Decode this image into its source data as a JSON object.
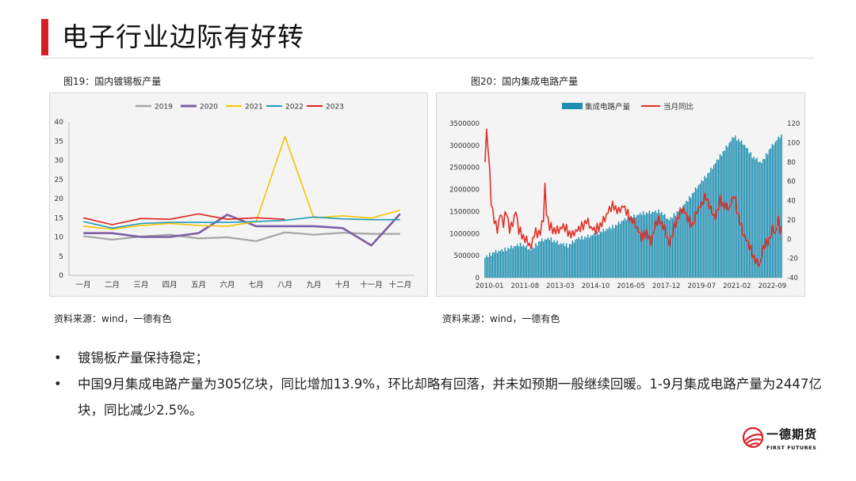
{
  "page": {
    "title": "电子行业边际有好转"
  },
  "fig19": {
    "caption": "图19：国内镀锡板产量",
    "source": "资料来源：wind，一德有色"
  },
  "fig20": {
    "caption": "图20：国内集成电路产量",
    "source": "资料来源：wind，一德有色"
  },
  "bullets": [
    "镀锡板产量保持稳定；",
    "中国9月集成电路产量为305亿块，同比增加13.9%，环比却略有回落，并未如预期一般继续回暖。1-9月集成电路产量为2447亿块，同比减少2.5%。"
  ],
  "bullet_marker": "•",
  "logo": {
    "name_cn": "一德期货",
    "name_en": "FIRST FUTURES"
  },
  "colors": {
    "accent": "#d81e24",
    "bar": "#1a8db0",
    "line": "#e03027"
  },
  "chart_data": [
    {
      "type": "line",
      "categories": [
        "一月",
        "二月",
        "三月",
        "四月",
        "五月",
        "六月",
        "七月",
        "八月",
        "九月",
        "十月",
        "十一月",
        "十二月"
      ],
      "ylim": [
        0,
        40
      ],
      "yticks": [
        0,
        5,
        10,
        15,
        20,
        25,
        30,
        35,
        40
      ],
      "grid": false,
      "legend_position": "top",
      "series": [
        {
          "name": "2019",
          "color": "#a5a5a5",
          "width": 2.2,
          "values": [
            10.2,
            9.3,
            10.1,
            10.6,
            9.6,
            9.9,
            8.9,
            11.2,
            10.6,
            11.1,
            10.8,
            10.8
          ]
        },
        {
          "name": "2020",
          "color": "#7b5ea7",
          "width": 2.6,
          "values": [
            11.0,
            11.0,
            10.0,
            10.0,
            11.0,
            15.8,
            12.8,
            12.8,
            12.8,
            12.3,
            7.8,
            16.0
          ]
        },
        {
          "name": "2021",
          "color": "#f5c400",
          "width": 1.6,
          "values": [
            12.8,
            12.0,
            13.0,
            13.5,
            13.0,
            12.8,
            14.0,
            36.2,
            15.0,
            15.5,
            14.9,
            17.0
          ]
        },
        {
          "name": "2022",
          "color": "#1f9bb8",
          "width": 1.6,
          "values": [
            14.0,
            12.3,
            13.5,
            13.8,
            13.8,
            13.8,
            14.0,
            14.3,
            15.2,
            14.7,
            14.5,
            14.5
          ]
        },
        {
          "name": "2023",
          "color": "#e0201b",
          "width": 1.6,
          "values": [
            15.0,
            13.2,
            14.8,
            14.6,
            16.0,
            14.6,
            15.0,
            14.6,
            null,
            null,
            null,
            null
          ]
        }
      ]
    },
    {
      "type": "bar+line",
      "x_tick_labels": [
        "2010-01",
        "2011-08",
        "2013-03",
        "2014-10",
        "2016-05",
        "2017-12",
        "2019-07",
        "2021-02",
        "2022-09"
      ],
      "ylim_left": [
        0,
        3500000
      ],
      "yticks_left": [
        0,
        500000,
        1000000,
        1500000,
        2000000,
        2500000,
        3000000,
        3500000
      ],
      "ylim_right": [
        -40,
        120
      ],
      "yticks_right": [
        -40,
        -20,
        0,
        20,
        40,
        60,
        80,
        100,
        120
      ],
      "legend_position": "top",
      "series": [
        {
          "name": "集成电路产量",
          "axis": "left",
          "type": "bar",
          "anchors": [
            [
              0,
              450000
            ],
            [
              6,
              580000
            ],
            [
              12,
              620000
            ],
            [
              18,
              700000
            ],
            [
              24,
              750000
            ],
            [
              30,
              620000
            ],
            [
              36,
              840000
            ],
            [
              42,
              880000
            ],
            [
              48,
              780000
            ],
            [
              54,
              720000
            ],
            [
              60,
              880000
            ],
            [
              66,
              920000
            ],
            [
              72,
              980000
            ],
            [
              78,
              1080000
            ],
            [
              84,
              1160000
            ],
            [
              90,
              1300000
            ],
            [
              96,
              1380000
            ],
            [
              102,
              1450000
            ],
            [
              108,
              1480000
            ],
            [
              114,
              1500000
            ],
            [
              120,
              1300000
            ],
            [
              126,
              1520000
            ],
            [
              132,
              1750000
            ],
            [
              138,
              2050000
            ],
            [
              144,
              2300000
            ],
            [
              150,
              2600000
            ],
            [
              156,
              2900000
            ],
            [
              162,
              3200000
            ],
            [
              168,
              3050000
            ],
            [
              174,
              2750000
            ],
            [
              180,
              2600000
            ],
            [
              186,
              2950000
            ],
            [
              192,
              3200000
            ]
          ],
          "noise": [
            0,
            35000,
            -25000,
            50000,
            -40000,
            20000,
            -15000,
            45000,
            -30000,
            10000
          ]
        },
        {
          "name": "当月同比",
          "axis": "right",
          "type": "line",
          "anchors": [
            [
              0,
              80
            ],
            [
              1,
              110
            ],
            [
              2,
              95
            ],
            [
              4,
              40
            ],
            [
              6,
              20
            ],
            [
              8,
              8
            ],
            [
              10,
              25
            ],
            [
              12,
              15
            ],
            [
              14,
              30
            ],
            [
              16,
              10
            ],
            [
              18,
              15
            ],
            [
              20,
              28
            ],
            [
              22,
              8
            ],
            [
              24,
              5
            ],
            [
              27,
              -2
            ],
            [
              30,
              -10
            ],
            [
              32,
              5
            ],
            [
              36,
              8
            ],
            [
              38,
              20
            ],
            [
              39,
              55
            ],
            [
              40,
              25
            ],
            [
              42,
              12
            ],
            [
              45,
              10
            ],
            [
              48,
              8
            ],
            [
              51,
              12
            ],
            [
              54,
              8
            ],
            [
              57,
              4
            ],
            [
              60,
              8
            ],
            [
              63,
              12
            ],
            [
              66,
              20
            ],
            [
              69,
              10
            ],
            [
              72,
              8
            ],
            [
              75,
              15
            ],
            [
              78,
              20
            ],
            [
              81,
              30
            ],
            [
              84,
              35
            ],
            [
              87,
              28
            ],
            [
              90,
              33
            ],
            [
              93,
              25
            ],
            [
              96,
              20
            ],
            [
              99,
              10
            ],
            [
              102,
              0
            ],
            [
              105,
              8
            ],
            [
              108,
              -5
            ],
            [
              111,
              15
            ],
            [
              114,
              20
            ],
            [
              117,
              10
            ],
            [
              120,
              -8
            ],
            [
              123,
              12
            ],
            [
              126,
              25
            ],
            [
              129,
              30
            ],
            [
              132,
              20
            ],
            [
              135,
              15
            ],
            [
              138,
              28
            ],
            [
              141,
              35
            ],
            [
              144,
              45
            ],
            [
              147,
              30
            ],
            [
              150,
              20
            ],
            [
              153,
              40
            ],
            [
              156,
              35
            ],
            [
              159,
              30
            ],
            [
              162,
              45
            ],
            [
              165,
              25
            ],
            [
              168,
              5
            ],
            [
              171,
              -5
            ],
            [
              174,
              -15
            ],
            [
              177,
              -25
            ],
            [
              179,
              -28
            ],
            [
              181,
              -10
            ],
            [
              183,
              -5
            ],
            [
              185,
              0
            ],
            [
              187,
              10
            ],
            [
              189,
              5
            ],
            [
              191,
              20
            ],
            [
              192,
              8
            ]
          ],
          "noise": [
            0,
            4,
            -3,
            6,
            -5,
            2,
            -4,
            5,
            -2,
            3
          ]
        }
      ]
    }
  ]
}
